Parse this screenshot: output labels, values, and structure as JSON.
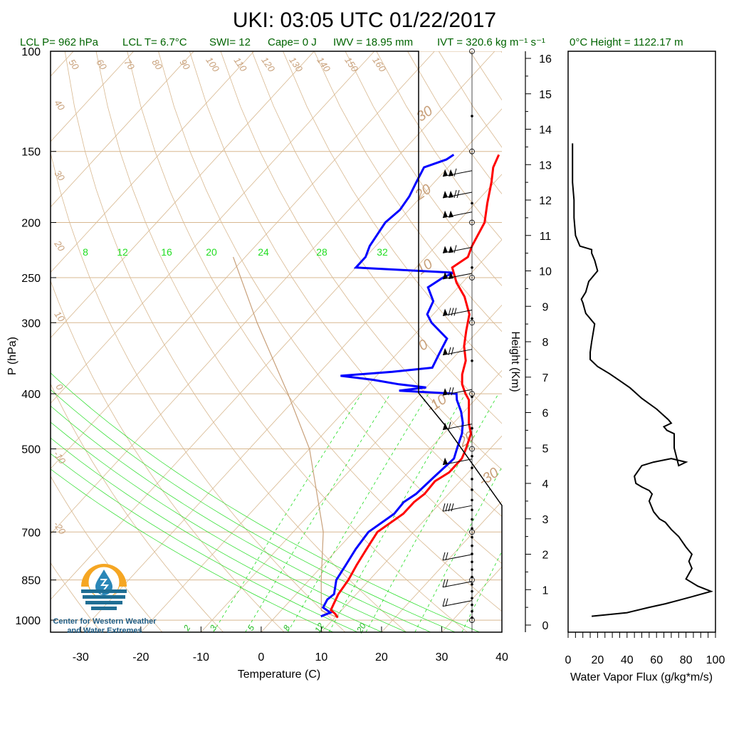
{
  "title": "UKI: 03:05 UTC 01/22/2017",
  "params": {
    "lcl_p": "LCL P= 962 hPa",
    "lcl_t": "LCL T= 6.7°C",
    "swi": "SWI= 12",
    "cape": "Cape= 0 J",
    "iwv": "IWV = 18.95 mm",
    "ivt": "IVT = 320.6 kg m⁻¹ s⁻¹",
    "zero_height": "0°C Height = 1122.17 m"
  },
  "logo": {
    "line1": "Center for Western Weather",
    "line2": "and Water Extremes",
    "colors": {
      "sun": "#f5a623",
      "drop": "#2a87b8",
      "water": "#1f6e94"
    }
  },
  "chart_data": [
    {
      "type": "line",
      "name": "skew-t",
      "xlabel": "Temperature (C)",
      "ylabel": "P (hPa)",
      "xticks": [
        "-30",
        "-20",
        "-10",
        "0",
        "10",
        "20",
        "30",
        "40"
      ],
      "yticks": [
        "100",
        "150",
        "200",
        "250",
        "300",
        "400",
        "500",
        "700",
        "850",
        "1000"
      ],
      "xlim": [
        -35,
        40
      ],
      "ylim": [
        1050,
        100
      ],
      "yscale": "log",
      "colors": {
        "temperature": "#ff0000",
        "dewpoint": "#0000ff",
        "grid": "#d8b890",
        "mixing": "#22dd22"
      },
      "dry_adiabat_labels": [
        "50",
        "60",
        "70",
        "80",
        "90",
        "100",
        "110",
        "120",
        "130",
        "140",
        "150",
        "160"
      ],
      "isotherm_labels_left": [
        "40",
        "30",
        "20",
        "10",
        "0",
        "-10",
        "-20"
      ],
      "isotherm_labels_right": [
        "30",
        "20",
        "10",
        "0",
        "-10",
        "-20",
        "-30"
      ],
      "mixing_ratio_labels_top": [
        "8",
        "12",
        "16",
        "20",
        "24",
        "28",
        "32"
      ],
      "mixing_ratio_labels_bottom": [
        "2",
        "3",
        "5",
        "8",
        "12",
        "20"
      ],
      "temperature": [
        {
          "p": 990,
          "t": 10.5
        },
        {
          "p": 975,
          "t": 9.5
        },
        {
          "p": 960,
          "t": 8.2
        },
        {
          "p": 940,
          "t": 7.8
        },
        {
          "p": 900,
          "t": 7.0
        },
        {
          "p": 850,
          "t": 6.5
        },
        {
          "p": 800,
          "t": 5.6
        },
        {
          "p": 750,
          "t": 4.8
        },
        {
          "p": 700,
          "t": 4.0
        },
        {
          "p": 650,
          "t": 5.5
        },
        {
          "p": 620,
          "t": 5.5
        },
        {
          "p": 600,
          "t": 6.0
        },
        {
          "p": 570,
          "t": 5.8
        },
        {
          "p": 550,
          "t": 6.8
        },
        {
          "p": 520,
          "t": 6.8
        },
        {
          "p": 500,
          "t": 6.0
        },
        {
          "p": 470,
          "t": 4.5
        },
        {
          "p": 450,
          "t": 2.5
        },
        {
          "p": 430,
          "t": 0.8
        },
        {
          "p": 410,
          "t": -1.0
        },
        {
          "p": 400,
          "t": -2.5
        },
        {
          "p": 385,
          "t": -4.5
        },
        {
          "p": 370,
          "t": -6.0
        },
        {
          "p": 350,
          "t": -7.5
        },
        {
          "p": 330,
          "t": -10.0
        },
        {
          "p": 310,
          "t": -12.0
        },
        {
          "p": 290,
          "t": -14.0
        },
        {
          "p": 270,
          "t": -17.5
        },
        {
          "p": 255,
          "t": -21.0
        },
        {
          "p": 240,
          "t": -24.0
        },
        {
          "p": 230,
          "t": -23.0
        },
        {
          "p": 220,
          "t": -24.0
        },
        {
          "p": 200,
          "t": -25.5
        },
        {
          "p": 185,
          "t": -28.0
        },
        {
          "p": 170,
          "t": -30.5
        },
        {
          "p": 160,
          "t": -32.5
        },
        {
          "p": 152,
          "t": -33.5
        }
      ],
      "dewpoint": [
        {
          "p": 985,
          "t": 7.5
        },
        {
          "p": 970,
          "t": 8.5
        },
        {
          "p": 950,
          "t": 6.5
        },
        {
          "p": 920,
          "t": 6.0
        },
        {
          "p": 900,
          "t": 6.3
        },
        {
          "p": 850,
          "t": 4.5
        },
        {
          "p": 800,
          "t": 3.8
        },
        {
          "p": 750,
          "t": 3.0
        },
        {
          "p": 700,
          "t": 2.5
        },
        {
          "p": 650,
          "t": 4.0
        },
        {
          "p": 620,
          "t": 3.8
        },
        {
          "p": 600,
          "t": 4.6
        },
        {
          "p": 560,
          "t": 5.0
        },
        {
          "p": 520,
          "t": 5.5
        },
        {
          "p": 500,
          "t": 4.5
        },
        {
          "p": 470,
          "t": 3.0
        },
        {
          "p": 450,
          "t": 1.5
        },
        {
          "p": 430,
          "t": -0.5
        },
        {
          "p": 410,
          "t": -3.0
        },
        {
          "p": 400,
          "t": -4.0
        },
        {
          "p": 395,
          "t": -14.0
        },
        {
          "p": 390,
          "t": -10.0
        },
        {
          "p": 385,
          "t": -15.0
        },
        {
          "p": 378,
          "t": -20.0
        },
        {
          "p": 372,
          "t": -26.0
        },
        {
          "p": 366,
          "t": -18.0
        },
        {
          "p": 360,
          "t": -12.0
        },
        {
          "p": 340,
          "t": -13.0
        },
        {
          "p": 320,
          "t": -14.0
        },
        {
          "p": 300,
          "t": -19.0
        },
        {
          "p": 290,
          "t": -21.0
        },
        {
          "p": 275,
          "t": -22.0
        },
        {
          "p": 260,
          "t": -25.0
        },
        {
          "p": 250,
          "t": -24.0
        },
        {
          "p": 245,
          "t": -23.0
        },
        {
          "p": 240,
          "t": -40.0
        },
        {
          "p": 230,
          "t": -40.0
        },
        {
          "p": 220,
          "t": -41.0
        },
        {
          "p": 200,
          "t": -42.0
        },
        {
          "p": 190,
          "t": -41.5
        },
        {
          "p": 180,
          "t": -42.0
        },
        {
          "p": 170,
          "t": -43.0
        },
        {
          "p": 160,
          "t": -44.0
        },
        {
          "p": 155,
          "t": -41.5
        },
        {
          "p": 152,
          "t": -41.0
        }
      ],
      "parcel": [
        {
          "p": 990,
          "t": 10.5
        },
        {
          "p": 962,
          "t": 6.7
        },
        {
          "p": 850,
          "t": 2.0
        },
        {
          "p": 700,
          "t": -5.0
        },
        {
          "p": 500,
          "t": -20.0
        },
        {
          "p": 400,
          "t": -32.0
        },
        {
          "p": 300,
          "t": -48.0
        },
        {
          "p": 230,
          "t": -62.0
        }
      ],
      "wind_barbs": [
        {
          "p": 165,
          "speed": 115
        },
        {
          "p": 180,
          "speed": 120
        },
        {
          "p": 195,
          "speed": 105
        },
        {
          "p": 225,
          "speed": 110
        },
        {
          "p": 250,
          "speed": 100
        },
        {
          "p": 290,
          "speed": 85
        },
        {
          "p": 340,
          "speed": 75
        },
        {
          "p": 400,
          "speed": 70
        },
        {
          "p": 460,
          "speed": 60
        },
        {
          "p": 530,
          "speed": 55
        },
        {
          "p": 640,
          "speed": 40
        },
        {
          "p": 780,
          "speed": 20
        },
        {
          "p": 870,
          "speed": 25
        },
        {
          "p": 940,
          "speed": 20
        }
      ]
    },
    {
      "type": "line",
      "name": "water-vapor-flux",
      "xlabel": "Water Vapor Flux (g/kg*m/s)",
      "ylabel": "Height (Km)",
      "xticks": [
        "0",
        "20",
        "40",
        "60",
        "80",
        "100"
      ],
      "yticks": [
        "0",
        "1",
        "2",
        "3",
        "4",
        "5",
        "6",
        "7",
        "8",
        "9",
        "10",
        "11",
        "12",
        "13",
        "14",
        "15",
        "16"
      ],
      "xlim": [
        0,
        100
      ],
      "ylim": [
        0,
        16
      ],
      "color": "#000000",
      "x": [
        16,
        40,
        55,
        66,
        75,
        84,
        97,
        88,
        80,
        84,
        82,
        84,
        80,
        75,
        70,
        66,
        62,
        58,
        55,
        57,
        55,
        50,
        46,
        45,
        50,
        58,
        70,
        80,
        75,
        72,
        72,
        67,
        65,
        70,
        68,
        60,
        50,
        42,
        35,
        28,
        20,
        15,
        15,
        16,
        18,
        12,
        10,
        9,
        12,
        14,
        20,
        18,
        16,
        16,
        8,
        5,
        4,
        4,
        3,
        3,
        3
      ],
      "y": [
        0.25,
        0.35,
        0.5,
        0.6,
        0.7,
        0.8,
        0.95,
        1.1,
        1.3,
        1.6,
        1.8,
        2.0,
        2.2,
        2.5,
        2.7,
        2.9,
        3.0,
        3.2,
        3.5,
        3.7,
        3.8,
        3.9,
        4.0,
        4.2,
        4.5,
        4.6,
        4.7,
        4.6,
        4.5,
        5.0,
        5.4,
        5.5,
        5.6,
        5.7,
        5.8,
        6.1,
        6.4,
        6.7,
        6.9,
        7.1,
        7.3,
        7.5,
        7.7,
        8.0,
        8.5,
        8.8,
        9.1,
        9.2,
        9.4,
        9.7,
        10.0,
        10.3,
        10.5,
        10.6,
        10.7,
        11.0,
        11.5,
        12.0,
        12.5,
        13.0,
        13.6
      ]
    }
  ]
}
